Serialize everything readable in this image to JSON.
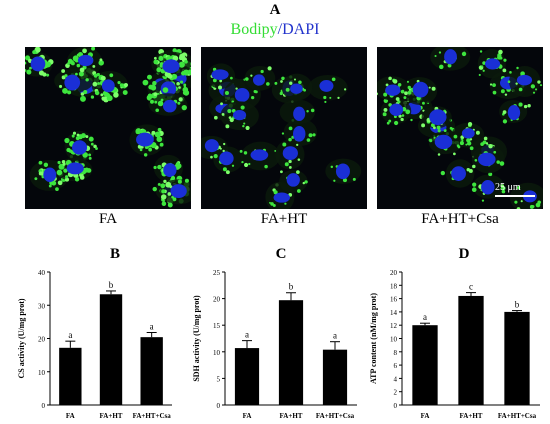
{
  "panels": {
    "A": "A",
    "B": "B",
    "C": "C",
    "D": "D"
  },
  "stain": {
    "part1": "Bodipy",
    "slash": "/",
    "part2": "DAPI",
    "color1": "#33dd33",
    "color2": "#2233cc"
  },
  "images": [
    {
      "label": "FA"
    },
    {
      "label": "FA+HT"
    },
    {
      "label": "FA+HT+Csa"
    }
  ],
  "scale_bar": "25 μm",
  "chart_data": [
    {
      "type": "bar",
      "panel": "B",
      "categories": [
        "FA",
        "FA+HT",
        "FA+HT+Csa"
      ],
      "values": [
        17.2,
        33.3,
        20.4
      ],
      "errors": [
        2.0,
        1.0,
        1.4
      ],
      "letters": [
        "a",
        "b",
        "a"
      ],
      "ylabel": "CS activity (U/mg prot)",
      "ylim": [
        0,
        40
      ],
      "yticks": [
        0,
        10,
        20,
        30,
        40
      ],
      "bar_color": "#000000"
    },
    {
      "type": "bar",
      "panel": "C",
      "categories": [
        "FA",
        "FA+HT",
        "FA+HT+Csa"
      ],
      "values": [
        10.7,
        19.7,
        10.4
      ],
      "errors": [
        1.4,
        1.4,
        1.5
      ],
      "letters": [
        "a",
        "b",
        "a"
      ],
      "ylabel": "SDH activity (U/mg prot)",
      "ylim": [
        0,
        25
      ],
      "yticks": [
        0,
        5,
        10,
        15,
        20,
        25
      ],
      "bar_color": "#000000"
    },
    {
      "type": "bar",
      "panel": "D",
      "categories": [
        "FA",
        "FA+HT",
        "FA+HT+Csa"
      ],
      "values": [
        12.0,
        16.4,
        14.0
      ],
      "errors": [
        0.3,
        0.5,
        0.2
      ],
      "letters": [
        "a",
        "c",
        "b"
      ],
      "ylabel": "ATP content (nM/mg prot)",
      "ylim": [
        0,
        20
      ],
      "yticks": [
        0,
        2,
        4,
        6,
        8,
        10,
        12,
        14,
        16,
        18,
        20
      ],
      "bar_color": "#000000"
    }
  ]
}
